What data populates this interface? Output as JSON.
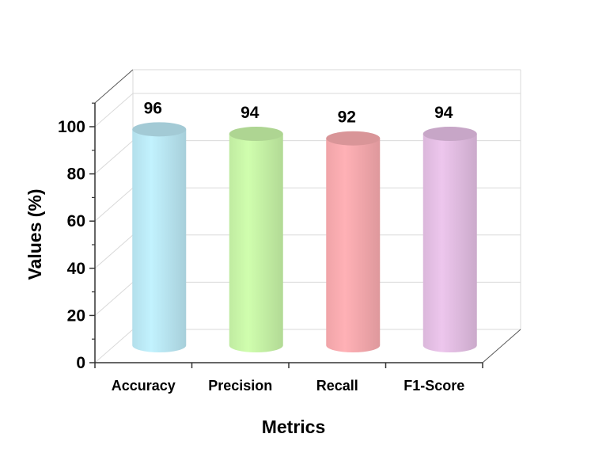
{
  "chart_data": {
    "type": "bar",
    "style": "3d-cylinder",
    "title": "",
    "xlabel": "Metrics",
    "ylabel": "Values (%)",
    "ylim": [
      0,
      100
    ],
    "yticks": [
      "0",
      "20",
      "40",
      "60",
      "80",
      "100"
    ],
    "grid": true,
    "categories": [
      "Accuracy",
      "Precision",
      "Recall",
      "F1-Score"
    ],
    "values": [
      96,
      94,
      92,
      94
    ],
    "value_labels": [
      "96",
      "94",
      "92",
      "94"
    ],
    "colors": [
      "#b9e6f2",
      "#c6f2a6",
      "#f7a9ad",
      "#e2bde2"
    ]
  }
}
